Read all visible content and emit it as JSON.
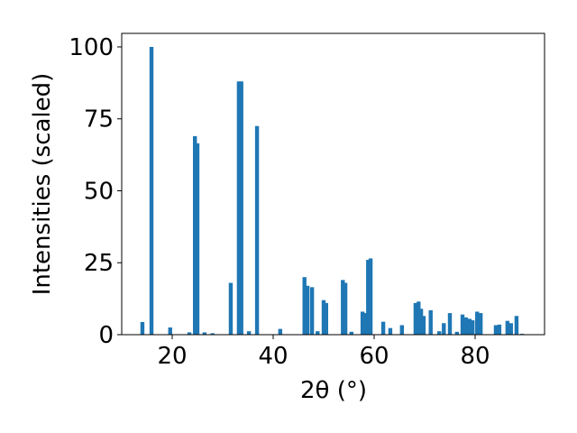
{
  "chart_data": {
    "type": "bar",
    "x_label": "2θ (°)",
    "y_label": "Intensities (scaled)",
    "color": "#1f77b4",
    "x": [
      14.1,
      15.9,
      19.6,
      23.4,
      24.5,
      25.0,
      26.4,
      28.0,
      31.6,
      33.2,
      33.7,
      35.2,
      36.8,
      41.4,
      46.2,
      46.8,
      47.7,
      48.8,
      50.0,
      50.5,
      53.8,
      54.3,
      55.5,
      57.7,
      58.2,
      58.8,
      59.3,
      61.8,
      63.2,
      65.5,
      68.2,
      68.8,
      69.3,
      69.8,
      71.2,
      72.9,
      73.8,
      75.0,
      76.4,
      77.5,
      78.2,
      78.9,
      79.5,
      80.4,
      81.1,
      84.1,
      84.8,
      86.4,
      87.1,
      88.2,
      89.3
    ],
    "values": [
      4.4,
      100,
      2.5,
      0.8,
      69,
      66.5,
      0.8,
      0.5,
      18,
      88,
      88,
      1.2,
      72.5,
      2,
      20,
      17,
      16.5,
      1.2,
      12,
      11,
      19,
      18,
      1,
      8,
      7.5,
      26,
      26.5,
      4.5,
      2.3,
      3.3,
      11,
      11.5,
      9,
      6.5,
      8.5,
      1.2,
      4,
      7.5,
      1,
      7,
      6,
      5.5,
      5,
      8,
      7.5,
      3.3,
      3.5,
      4.8,
      4,
      6.5,
      0.3
    ],
    "xlim": [
      10,
      93.75
    ],
    "ylim": [
      0,
      104.7
    ],
    "xticks": [
      20,
      40,
      60,
      80
    ],
    "yticks": [
      0,
      25,
      50,
      75,
      100
    ]
  }
}
